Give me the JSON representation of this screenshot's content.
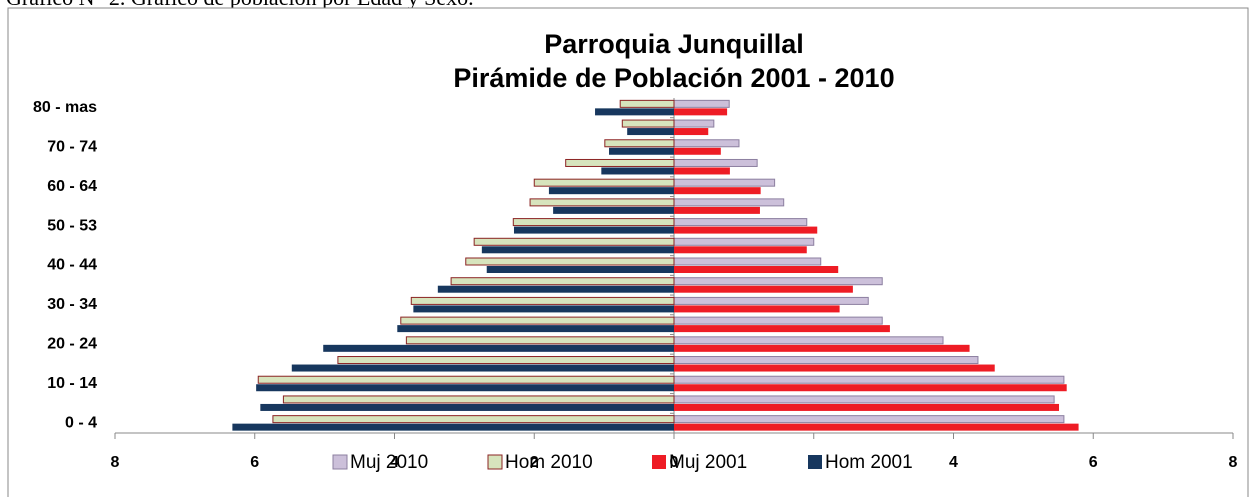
{
  "caption": "Gráfico N° 2. Gráfico de población por Edad y Sexo.",
  "chart_data": {
    "type": "bar",
    "orientation": "horizontal",
    "title": [
      "Parroquia Junquillal",
      "Pirámide de Población 2001 - 2010"
    ],
    "categories": [
      "0 - 4",
      null,
      "10 - 14",
      null,
      "20 - 24",
      null,
      "30 - 34",
      null,
      "40 - 44",
      null,
      "50 - 53",
      null,
      "60 - 64",
      null,
      "70 - 74",
      null,
      "80 - mas"
    ],
    "series": [
      {
        "name": "Muj 2010",
        "color": "#ccc0da",
        "border": "#8c7fa0",
        "values": [
          5.58,
          5.44,
          5.58,
          4.35,
          3.85,
          2.98,
          2.78,
          2.98,
          2.1,
          2.0,
          1.9,
          1.57,
          1.44,
          1.19,
          0.93,
          0.57,
          0.79
        ]
      },
      {
        "name": "Hom 2010",
        "color": "#d7e4bd",
        "border": "#8b2323",
        "values": [
          -5.74,
          -5.59,
          -5.95,
          -4.81,
          -3.83,
          -3.91,
          -3.76,
          -3.19,
          -2.98,
          -2.86,
          -2.3,
          -2.06,
          -2.0,
          -1.55,
          -0.99,
          -0.74,
          -0.77
        ]
      },
      {
        "name": "Muj 2001",
        "color": "#ee1c25",
        "values": [
          5.79,
          5.51,
          5.62,
          4.59,
          4.23,
          3.09,
          2.37,
          2.56,
          2.35,
          1.9,
          2.05,
          1.23,
          1.24,
          0.8,
          0.67,
          0.49,
          0.76
        ]
      },
      {
        "name": "Hom 2001",
        "color": "#17375e",
        "values": [
          -6.32,
          -5.92,
          -5.98,
          -5.47,
          -5.02,
          -3.96,
          -3.73,
          -3.38,
          -2.68,
          -2.75,
          -2.29,
          -1.73,
          -1.79,
          -1.04,
          -0.93,
          -0.67,
          -1.13
        ]
      }
    ],
    "xlim": [
      -8,
      8
    ],
    "xticks": [
      {
        "value": -8,
        "label": "8"
      },
      {
        "value": -6,
        "label": "6"
      },
      {
        "value": -4,
        "label": "4"
      },
      {
        "value": -2,
        "label": "2"
      },
      0,
      2,
      4,
      6,
      8
    ]
  }
}
